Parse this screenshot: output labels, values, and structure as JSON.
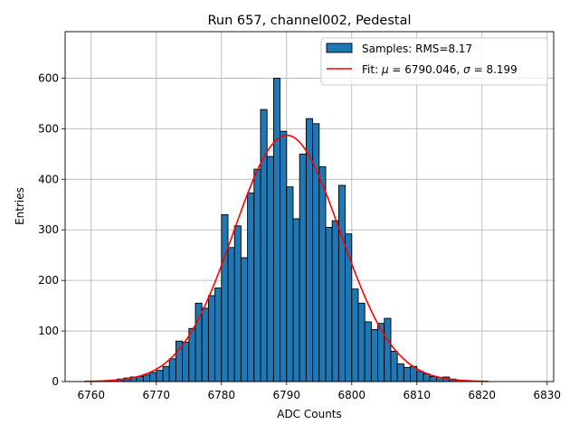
{
  "chart_data": {
    "type": "bar",
    "title": "Run 657, channel002, Pedestal",
    "xlabel": "ADC Counts",
    "ylabel": "Entries",
    "xlim": [
      6756,
      6831
    ],
    "ylim": [
      0,
      692
    ],
    "xticks": [
      "6760",
      "6770",
      "6780",
      "6790",
      "6800",
      "6810",
      "6820",
      "6830"
    ],
    "yticks": [
      "0",
      "100",
      "200",
      "300",
      "400",
      "500",
      "600"
    ],
    "grid": true,
    "legend_position": "top-right",
    "bin_start": 6760,
    "bin_width": 1,
    "histogram": {
      "name": "Samples: RMS=8.17",
      "color": "#1f77b4",
      "edge_color": "#000000",
      "values": [
        0,
        1,
        2,
        3,
        5,
        7,
        9,
        10,
        13,
        18,
        22,
        30,
        45,
        80,
        78,
        105,
        155,
        145,
        170,
        185,
        330,
        265,
        308,
        245,
        373,
        420,
        538,
        445,
        600,
        495,
        385,
        322,
        450,
        520,
        510,
        425,
        305,
        318,
        388,
        292,
        183,
        155,
        118,
        103,
        115,
        125,
        60,
        35,
        28,
        30,
        20,
        15,
        10,
        8,
        9,
        5,
        2,
        1,
        1,
        0
      ]
    },
    "fit": {
      "name_prefix": "Fit: ",
      "name_mu": "μ",
      "name_mid": " = 6790.046, ",
      "name_sigma": "σ",
      "name_suffix": " = 8.199",
      "color": "#ff0000",
      "mu": 6790.046,
      "sigma": 8.199,
      "amplitude": 487,
      "x_range": [
        6759,
        6821
      ]
    }
  }
}
